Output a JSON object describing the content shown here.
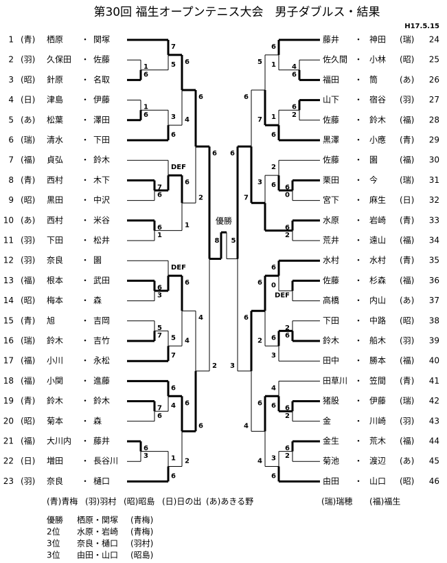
{
  "title": "第30回 福生オープンテニス大会　男子ダブルス・結果",
  "date": "H17.5.15",
  "separator": "・",
  "left_entries": [
    {
      "no": 1,
      "school": "(青)",
      "name1": "栖原",
      "name2": "関塚"
    },
    {
      "no": 2,
      "school": "(羽)",
      "name1": "久保田",
      "name2": "佐藤"
    },
    {
      "no": 3,
      "school": "(昭)",
      "name1": "針原",
      "name2": "名取"
    },
    {
      "no": 4,
      "school": "(日)",
      "name1": "津島",
      "name2": "伊藤"
    },
    {
      "no": 5,
      "school": "(あ)",
      "name1": "松葉",
      "name2": "澤田"
    },
    {
      "no": 6,
      "school": "(瑞)",
      "name1": "清水",
      "name2": "下田"
    },
    {
      "no": 7,
      "school": "(福)",
      "name1": "貞弘",
      "name2": "鈴木"
    },
    {
      "no": 8,
      "school": "(青)",
      "name1": "西村",
      "name2": "木下"
    },
    {
      "no": 9,
      "school": "(昭)",
      "name1": "黒田",
      "name2": "中沢"
    },
    {
      "no": 10,
      "school": "(あ)",
      "name1": "西村",
      "name2": "米谷"
    },
    {
      "no": 11,
      "school": "(羽)",
      "name1": "下田",
      "name2": "松井"
    },
    {
      "no": 12,
      "school": "(羽)",
      "name1": "奈良",
      "name2": "園"
    },
    {
      "no": 13,
      "school": "(福)",
      "name1": "根本",
      "name2": "武田"
    },
    {
      "no": 14,
      "school": "(昭)",
      "name1": "梅本",
      "name2": "森"
    },
    {
      "no": 15,
      "school": "(青)",
      "name1": "旭",
      "name2": "吉岡"
    },
    {
      "no": 16,
      "school": "(瑞)",
      "name1": "鈴木",
      "name2": "吉竹"
    },
    {
      "no": 17,
      "school": "(福)",
      "name1": "小川",
      "name2": "永松"
    },
    {
      "no": 18,
      "school": "(福)",
      "name1": "小関",
      "name2": "進藤"
    },
    {
      "no": 19,
      "school": "(青)",
      "name1": "鈴木",
      "name2": "鈴木"
    },
    {
      "no": 20,
      "school": "(昭)",
      "name1": "菊本",
      "name2": "森"
    },
    {
      "no": 21,
      "school": "(福)",
      "name1": "大川内",
      "name2": "藤井"
    },
    {
      "no": 22,
      "school": "(日)",
      "name1": "増田",
      "name2": "長谷川"
    },
    {
      "no": 23,
      "school": "(羽)",
      "name1": "奈良",
      "name2": "樋口"
    }
  ],
  "right_entries": [
    {
      "name1": "藤井",
      "name2": "神田",
      "school": "(瑞)",
      "no": 24
    },
    {
      "name1": "佐久間",
      "name2": "小林",
      "school": "(昭)",
      "no": 25
    },
    {
      "name1": "福田",
      "name2": "筒",
      "school": "(あ)",
      "no": 26
    },
    {
      "name1": "山下",
      "name2": "宿谷",
      "school": "(羽)",
      "no": 27
    },
    {
      "name1": "佐藤",
      "name2": "鈴木",
      "school": "(福)",
      "no": 28
    },
    {
      "name1": "黒澤",
      "name2": "小應",
      "school": "(青)",
      "no": 29
    },
    {
      "name1": "佐藤",
      "name2": "園",
      "school": "(福)",
      "no": 30
    },
    {
      "name1": "栗田",
      "name2": "今",
      "school": "(瑞)",
      "no": 31
    },
    {
      "name1": "宮下",
      "name2": "麻生",
      "school": "(日)",
      "no": 32
    },
    {
      "name1": "水原",
      "name2": "岩崎",
      "school": "(青)",
      "no": 33
    },
    {
      "name1": "荒井",
      "name2": "遠山",
      "school": "(福)",
      "no": 34
    },
    {
      "name1": "水村",
      "name2": "水村",
      "school": "(青)",
      "no": 35
    },
    {
      "name1": "佐藤",
      "name2": "杉森",
      "school": "(福)",
      "no": 36
    },
    {
      "name1": "高橋",
      "name2": "内山",
      "school": "(あ)",
      "no": 37
    },
    {
      "name1": "下田",
      "name2": "中路",
      "school": "(昭)",
      "no": 38
    },
    {
      "name1": "鈴木",
      "name2": "船木",
      "school": "(羽)",
      "no": 39
    },
    {
      "name1": "田中",
      "name2": "勝本",
      "school": "(福)",
      "no": 40
    },
    {
      "name1": "田草川",
      "name2": "笠間",
      "school": "(青)",
      "no": 41
    },
    {
      "name1": "猪股",
      "name2": "伊藤",
      "school": "(瑞)",
      "no": 42
    },
    {
      "name1": "金",
      "name2": "川崎",
      "school": "(羽)",
      "no": 43
    },
    {
      "name1": "金生",
      "name2": "荒木",
      "school": "(福)",
      "no": 44
    },
    {
      "name1": "菊池",
      "name2": "渡辺",
      "school": "(あ)",
      "no": 45
    },
    {
      "name1": "由田",
      "name2": "山口",
      "school": "(昭)",
      "no": 46
    }
  ],
  "left_scores": [
    [
      1,
      6
    ],
    [
      7,
      5
    ],
    [
      1,
      6
    ],
    [
      3,
      6
    ],
    [
      6,
      4
    ],
    [
      7,
      6
    ],
    [
      "DEF",
      null
    ],
    [
      6,
      1
    ],
    [
      6,
      1
    ],
    [
      6,
      2
    ],
    [
      6,
      3
    ],
    [
      "DEF",
      null
    ],
    [
      5,
      7
    ],
    [
      5,
      7
    ],
    [
      6,
      4
    ],
    [
      7,
      6
    ],
    [
      6,
      4
    ],
    [
      6,
      3
    ],
    [
      1,
      6
    ],
    [
      6,
      2
    ],
    [
      4,
      6
    ],
    [
      6,
      2
    ]
  ],
  "right_scores": [
    [
      4,
      6
    ],
    [
      6,
      1
    ],
    [
      6,
      2
    ],
    [
      1,
      6
    ],
    [
      5,
      7
    ],
    [
      6,
      0
    ],
    [
      2,
      6
    ],
    [
      6,
      2
    ],
    [
      3,
      null
    ],
    [
      6,
      7
    ],
    [
      null,
      "DEF"
    ],
    [
      6,
      0
    ],
    [
      2,
      6
    ],
    [
      6,
      3
    ],
    [
      6,
      2
    ],
    [
      6,
      2
    ],
    [
      4,
      6
    ],
    [
      6,
      2
    ],
    [
      3,
      6
    ],
    [
      6,
      4
    ],
    [
      6,
      4
    ],
    [
      6,
      3
    ]
  ],
  "final": {
    "label": "優勝",
    "scores": [
      8,
      5
    ]
  },
  "legend": [
    "(青)青梅",
    "(羽)羽村",
    "(昭)昭島",
    "(日)日の出",
    "(あ)あきる野",
    "(瑞)瑞穂",
    "(福)福生"
  ],
  "results": [
    {
      "place": "優勝",
      "names": "栖原・関塚",
      "school": "(青梅)"
    },
    {
      "place": "2位",
      "names": "水原・岩崎",
      "school": "(青梅)"
    },
    {
      "place": "3位",
      "names": "奈良・樋口",
      "school": "(羽村)"
    },
    {
      "place": "3位",
      "names": "由田・山口",
      "school": "(昭島)"
    }
  ]
}
